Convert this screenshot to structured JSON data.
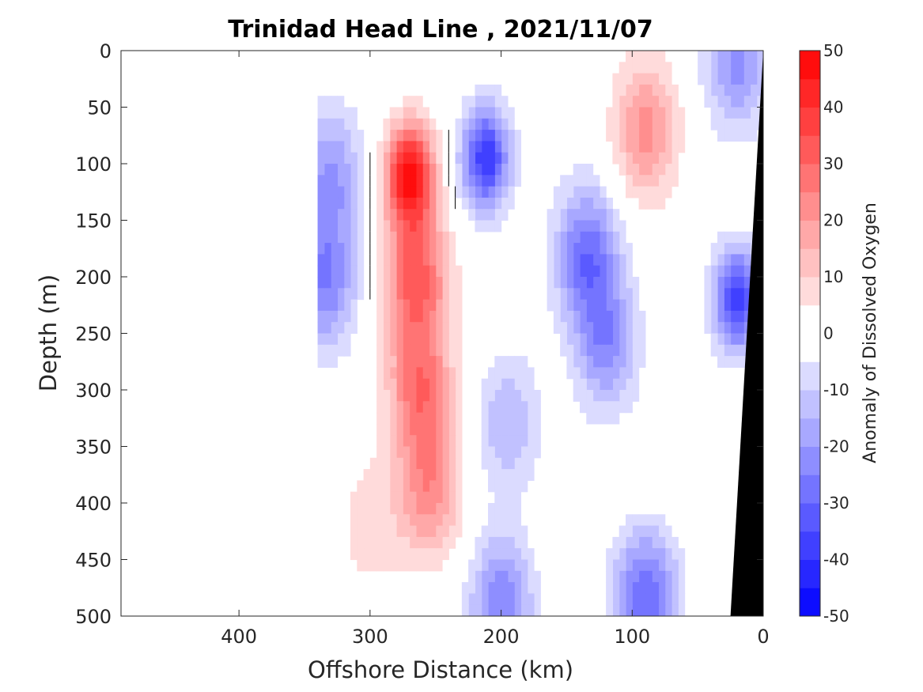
{
  "chart_data": {
    "type": "heatmap",
    "title": "Trinidad Head Line , 2021/11/07",
    "xlabel": "Offshore Distance (km)",
    "ylabel": "Depth (m)",
    "colorbar_label": "Anomaly of Dissolved Oxygen",
    "x_reversed": true,
    "y_reversed": true,
    "xlim": [
      490,
      0
    ],
    "ylim": [
      500,
      0
    ],
    "x_ticks": [
      400,
      300,
      200,
      100,
      0
    ],
    "y_ticks": [
      0,
      50,
      100,
      150,
      200,
      250,
      300,
      350,
      400,
      450,
      500
    ],
    "colorbar_ticks": [
      50,
      40,
      30,
      20,
      10,
      0,
      -10,
      -20,
      -30,
      -40,
      -50
    ],
    "colorbar_range": [
      -50,
      50
    ],
    "contour_levels": [
      0
    ],
    "section_start_km": 340,
    "features": [
      {
        "x": 270,
        "depth": 110,
        "anomaly": 48
      },
      {
        "x": 265,
        "depth": 200,
        "anomaly": 32
      },
      {
        "x": 262,
        "depth": 300,
        "anomaly": 27
      },
      {
        "x": 255,
        "depth": 390,
        "anomaly": 22
      },
      {
        "x": 300,
        "depth": 420,
        "anomaly": 8
      },
      {
        "x": 212,
        "depth": 95,
        "anomaly": -40
      },
      {
        "x": 90,
        "depth": 70,
        "anomaly": 22
      },
      {
        "x": 330,
        "depth": 110,
        "anomaly": -20
      },
      {
        "x": 335,
        "depth": 205,
        "anomaly": -25
      },
      {
        "x": 135,
        "depth": 180,
        "anomaly": -28
      },
      {
        "x": 120,
        "depth": 260,
        "anomaly": -22
      },
      {
        "x": 195,
        "depth": 330,
        "anomaly": -15
      },
      {
        "x": 90,
        "depth": 480,
        "anomaly": -30
      },
      {
        "x": 200,
        "depth": 490,
        "anomaly": -25
      },
      {
        "x": 20,
        "depth": 220,
        "anomaly": -38
      },
      {
        "x": 20,
        "depth": 10,
        "anomaly": -22
      },
      {
        "x": 90,
        "depth": 400,
        "anomaly": 2
      }
    ],
    "bathymetry": [
      [
        0,
        0
      ],
      [
        25,
        500
      ]
    ],
    "colors": {
      "positive_max": "#ff0000",
      "negative_max": "#0000ff",
      "neutral": "#ffffff",
      "bathymetry": "#000000",
      "contour": "#000000"
    }
  }
}
